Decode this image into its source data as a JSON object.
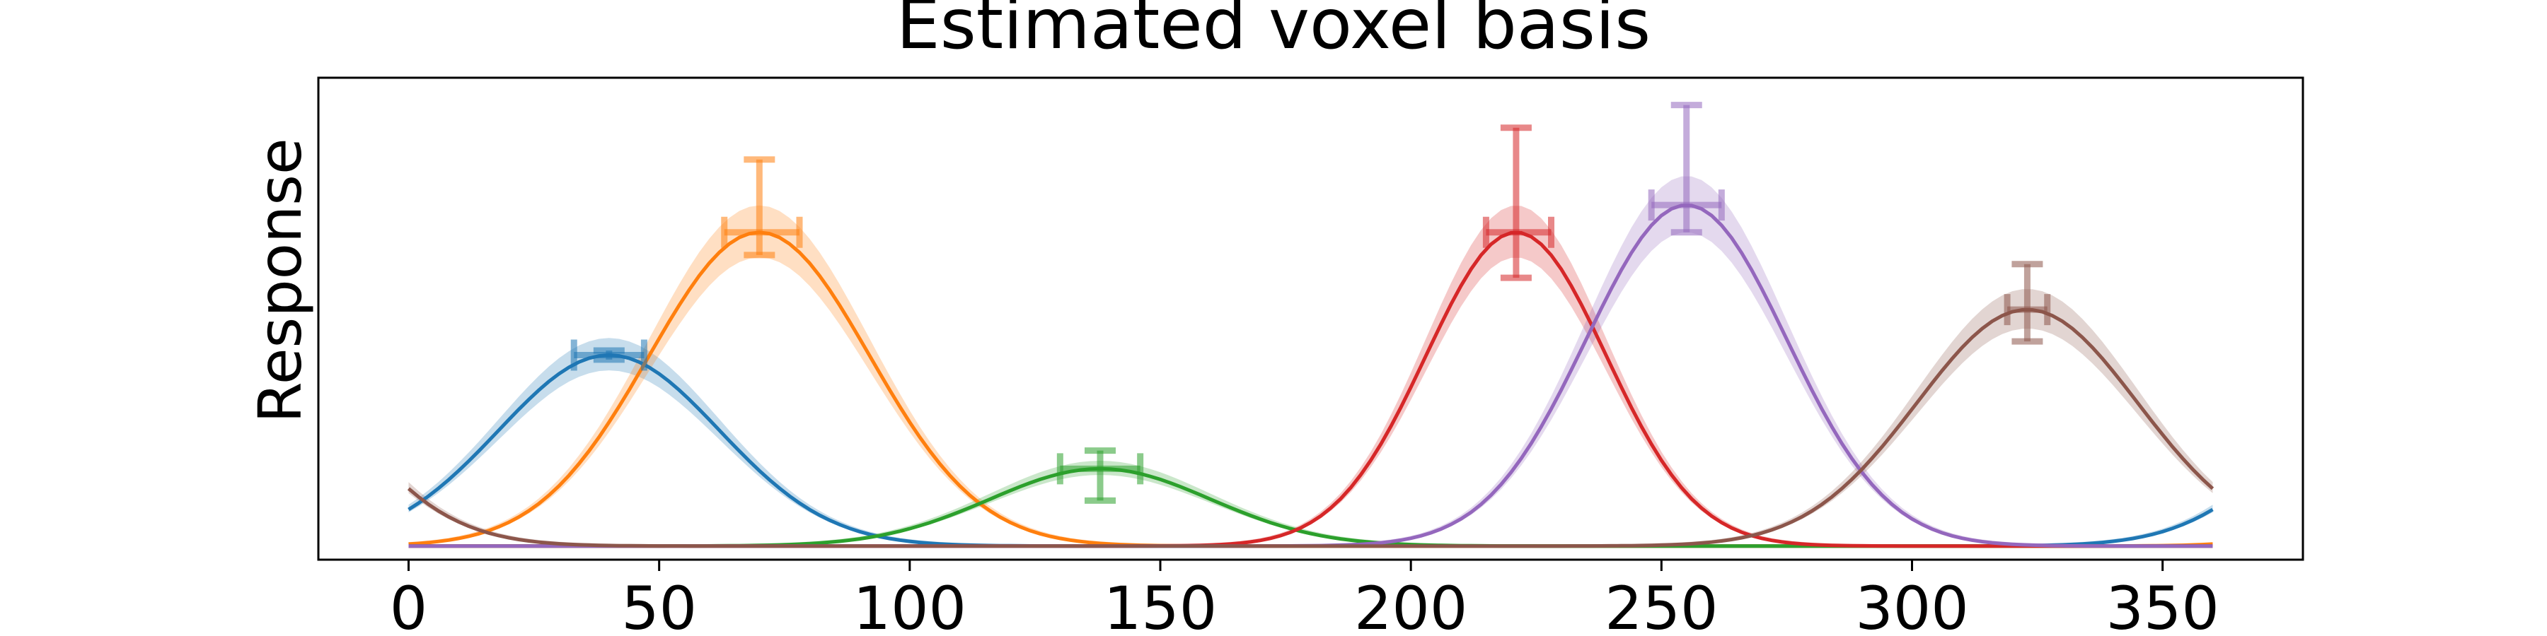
{
  "chart_data": {
    "type": "line",
    "title": "Estimated voxel basis",
    "xlabel": "",
    "ylabel": "Response",
    "xlim": [
      -18,
      378
    ],
    "ylim": [
      -0.03,
      1.03
    ],
    "xticks": [
      0,
      50,
      100,
      150,
      200,
      250,
      300,
      350
    ],
    "yticks_visible": false,
    "grid": false,
    "legend": "none",
    "series": [
      {
        "color": "#1f77b4",
        "center": 40,
        "amplitude": 0.42,
        "sigma": 22,
        "band": 0.08,
        "err_y": [
          0.41,
          0.43
        ],
        "err_x": [
          33,
          47
        ]
      },
      {
        "color": "#ff7f0e",
        "center": 70,
        "amplitude": 0.69,
        "sigma": 22,
        "band": 0.08,
        "err_y": [
          0.64,
          0.85
        ],
        "err_x": [
          63,
          78
        ]
      },
      {
        "color": "#2ca02c",
        "center": 138,
        "amplitude": 0.17,
        "sigma": 22,
        "band": 0.08,
        "err_y": [
          0.1,
          0.21
        ],
        "err_x": [
          130,
          146
        ]
      },
      {
        "color": "#d62728",
        "center": 221,
        "amplitude": 0.69,
        "sigma": 18,
        "band": 0.08,
        "err_y": [
          0.59,
          0.92
        ],
        "err_x": [
          215,
          228
        ]
      },
      {
        "color": "#9467bd",
        "center": 255,
        "amplitude": 0.75,
        "sigma": 20,
        "band": 0.08,
        "err_y": [
          0.69,
          0.97
        ],
        "err_x": [
          248,
          262
        ]
      },
      {
        "color": "#8c564b",
        "center": 323,
        "amplitude": 0.52,
        "sigma": 22,
        "band": 0.08,
        "err_y": [
          0.45,
          0.62
        ],
        "err_x": [
          319,
          327
        ]
      }
    ]
  }
}
